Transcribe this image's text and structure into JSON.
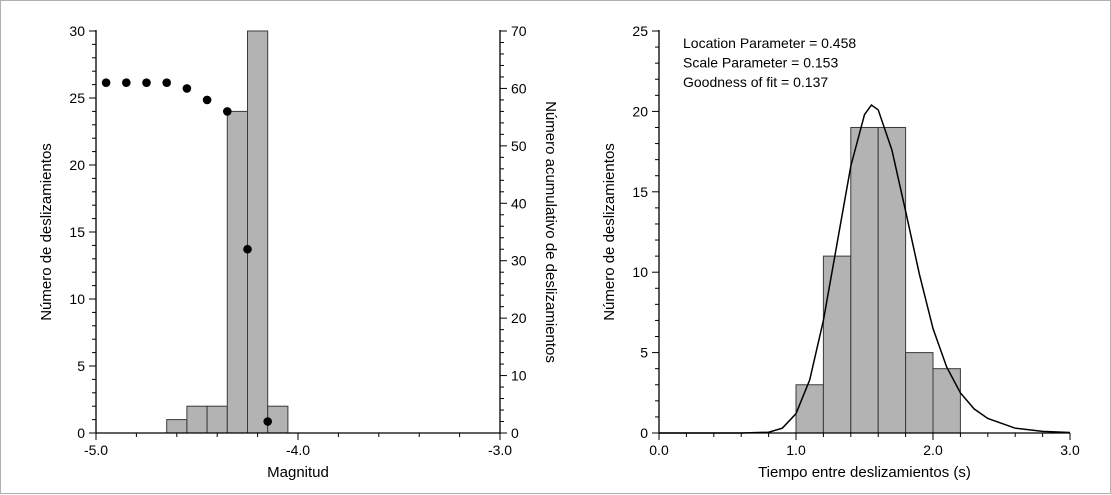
{
  "chart_data": [
    {
      "type": "bar",
      "title": "",
      "xlabel": "Magnitud",
      "ylabel": "Número de deslizamientos",
      "y2label": "Número acumulativo de deslizamientos",
      "xlim": [
        -5.0,
        -3.0
      ],
      "ylim": [
        0,
        30
      ],
      "y2lim": [
        0,
        70
      ],
      "xticks": [
        -5.0,
        -4.0,
        -3.0
      ],
      "xtick_labels": [
        "-5.0",
        "-4.0",
        "-3.0"
      ],
      "yticks": [
        0,
        5,
        10,
        15,
        20,
        25,
        30
      ],
      "y2ticks": [
        0,
        10,
        20,
        30,
        40,
        50,
        60,
        70
      ],
      "bar_width": 0.1,
      "bars": [
        {
          "x": -4.6,
          "value": 1
        },
        {
          "x": -4.5,
          "value": 2
        },
        {
          "x": -4.4,
          "value": 2
        },
        {
          "x": -4.3,
          "value": 24
        },
        {
          "x": -4.2,
          "value": 30
        },
        {
          "x": -4.1,
          "value": 2
        }
      ],
      "cumulative_points": [
        {
          "x": -4.95,
          "y": 61
        },
        {
          "x": -4.85,
          "y": 61
        },
        {
          "x": -4.75,
          "y": 61
        },
        {
          "x": -4.65,
          "y": 61
        },
        {
          "x": -4.55,
          "y": 60
        },
        {
          "x": -4.45,
          "y": 58
        },
        {
          "x": -4.35,
          "y": 56
        },
        {
          "x": -4.25,
          "y": 32
        },
        {
          "x": -4.15,
          "y": 2
        }
      ],
      "bar_color": "#b3b3b3"
    },
    {
      "type": "bar",
      "title": "",
      "xlabel": "Tiempo entre deslizamientos (s)",
      "ylabel": "Número de deslizamientos",
      "xlim": [
        0.0,
        3.0
      ],
      "ylim": [
        0,
        25
      ],
      "xticks": [
        0.0,
        1.0,
        2.0,
        3.0
      ],
      "xtick_labels": [
        "0.0",
        "1.0",
        "2.0",
        "3.0"
      ],
      "yticks": [
        0,
        5,
        10,
        15,
        20,
        25
      ],
      "bar_width": 0.2,
      "bars": [
        {
          "x": 1.1,
          "value": 3
        },
        {
          "x": 1.3,
          "value": 11
        },
        {
          "x": 1.5,
          "value": 19
        },
        {
          "x": 1.7,
          "value": 19
        },
        {
          "x": 1.9,
          "value": 5
        },
        {
          "x": 2.1,
          "value": 4
        }
      ],
      "fit_curve": {
        "x": [
          0.0,
          0.6,
          0.8,
          0.9,
          1.0,
          1.1,
          1.2,
          1.3,
          1.4,
          1.5,
          1.55,
          1.6,
          1.7,
          1.8,
          1.9,
          2.0,
          2.1,
          2.2,
          2.3,
          2.4,
          2.6,
          2.8,
          3.0
        ],
        "y": [
          0,
          0,
          0.05,
          0.3,
          1.2,
          3.3,
          7.0,
          11.8,
          16.6,
          19.8,
          20.4,
          20.1,
          17.6,
          13.8,
          9.9,
          6.5,
          4.1,
          2.5,
          1.5,
          0.9,
          0.3,
          0.1,
          0.03
        ]
      },
      "annotations": [
        "Location Parameter = 0.458",
        "Scale Parameter = 0.153",
        "Goodness of fit = 0.137"
      ],
      "bar_color": "#b3b3b3"
    }
  ]
}
